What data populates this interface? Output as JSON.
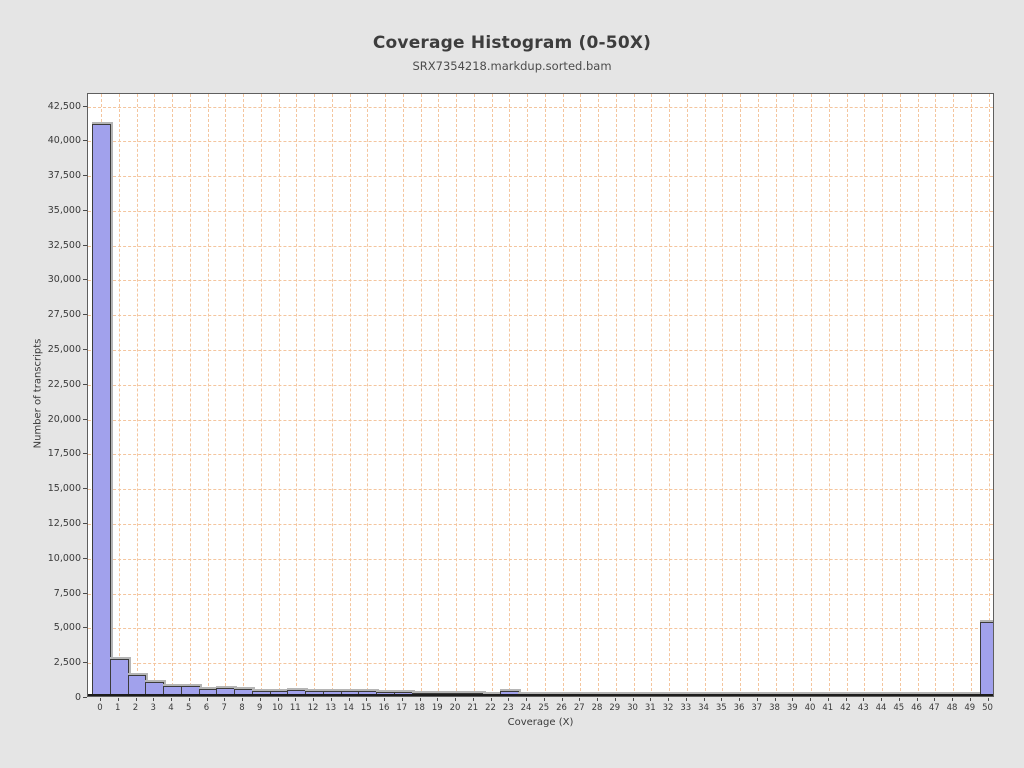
{
  "chart_data": {
    "type": "bar",
    "title": "Coverage Histogram (0-50X)",
    "subtitle": "SRX7354218.markdup.sorted.bam",
    "xlabel": "Coverage (X)",
    "ylabel": "Number of transcripts",
    "categories": [
      0,
      1,
      2,
      3,
      4,
      5,
      6,
      7,
      8,
      9,
      10,
      11,
      12,
      13,
      14,
      15,
      16,
      17,
      18,
      19,
      20,
      21,
      22,
      23,
      24,
      25,
      26,
      27,
      28,
      29,
      30,
      31,
      32,
      33,
      34,
      35,
      36,
      37,
      38,
      39,
      40,
      41,
      42,
      43,
      44,
      45,
      46,
      47,
      48,
      49,
      50
    ],
    "values": [
      41100,
      2650,
      1500,
      1000,
      750,
      700,
      530,
      550,
      480,
      390,
      390,
      430,
      330,
      330,
      350,
      360,
      260,
      260,
      250,
      250,
      250,
      250,
      150,
      330,
      130,
      120,
      120,
      110,
      110,
      110,
      100,
      100,
      100,
      100,
      140,
      40,
      35,
      30,
      30,
      25,
      25,
      20,
      20,
      20,
      15,
      15,
      15,
      10,
      10,
      10,
      5350
    ],
    "ylim": [
      0,
      43400
    ],
    "ytick_step": 2500,
    "ytick_max": 42500,
    "grid": "both, dashed",
    "legend": "none",
    "colors": {
      "page_bg": "#e5e5e5",
      "plot_bg": "#ffffff",
      "grid": "#f4c59e",
      "bar_fill": "#a1a1ec",
      "bar_border": "#3b3b3b",
      "bar_shadow": "#b5b5b5",
      "axis": "#1c1c1c",
      "text": "#3d3d3d"
    }
  }
}
